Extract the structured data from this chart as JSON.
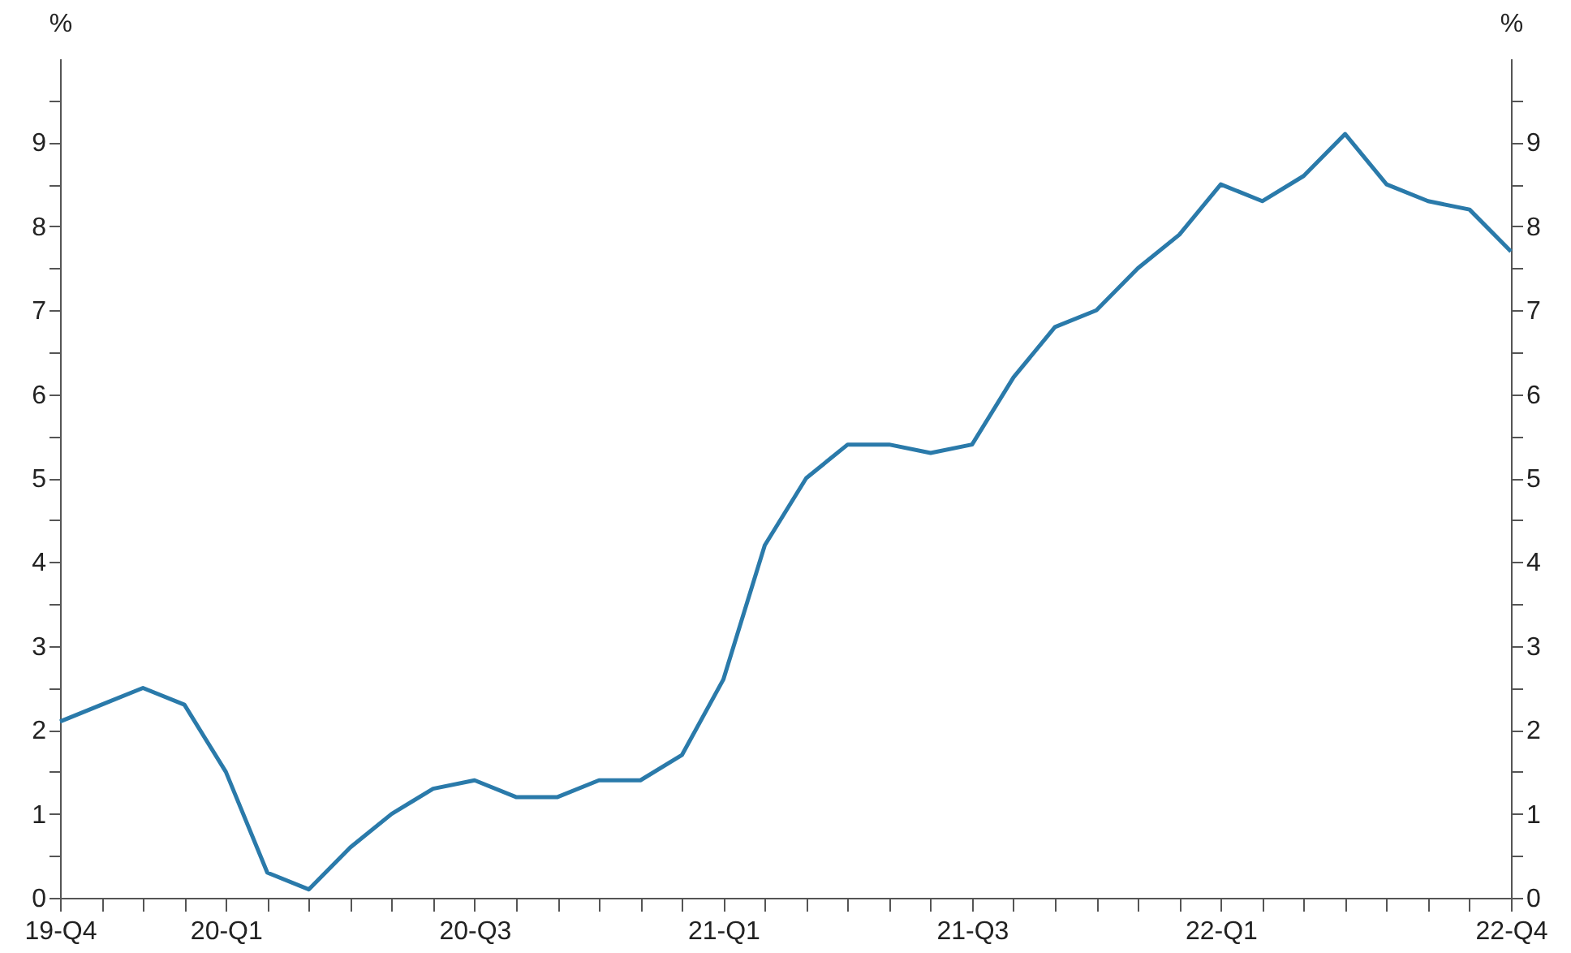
{
  "chart_data": {
    "type": "line",
    "ylabel": "%",
    "y2label": "%",
    "categories": [
      "19-Q4",
      null,
      null,
      null,
      "20-Q1",
      null,
      null,
      null,
      null,
      null,
      "20-Q3",
      null,
      null,
      null,
      null,
      null,
      "21-Q1",
      null,
      null,
      null,
      null,
      null,
      "21-Q3",
      null,
      null,
      null,
      null,
      null,
      "22-Q1",
      null,
      null,
      null,
      null,
      null,
      null,
      "22-Q4"
    ],
    "series": [
      {
        "color": "#2a7aaa",
        "values": [
          2.1,
          2.3,
          2.5,
          2.3,
          1.5,
          0.3,
          0.1,
          0.6,
          1.0,
          1.3,
          1.4,
          1.2,
          1.2,
          1.4,
          1.4,
          1.7,
          2.6,
          4.2,
          5.0,
          5.4,
          5.4,
          5.3,
          5.4,
          6.2,
          6.8,
          7.0,
          7.5,
          7.9,
          8.5,
          8.3,
          8.6,
          9.1,
          8.5,
          8.3,
          8.2,
          7.7
        ]
      }
    ],
    "ylim": [
      0,
      10
    ],
    "yticks": [
      0,
      {
        "value": 0.5,
        "label": null
      },
      1,
      {
        "value": 1.5,
        "label": null
      },
      2,
      {
        "value": 2.5,
        "label": null
      },
      3,
      {
        "value": 3.5,
        "label": null
      },
      4,
      {
        "value": 4.5,
        "label": null
      },
      5,
      {
        "value": 5.5,
        "label": null
      },
      6,
      {
        "value": 6.5,
        "label": null
      },
      7,
      {
        "value": 7.5,
        "label": null
      },
      8,
      {
        "value": 8.5,
        "label": null
      },
      9,
      {
        "value": 9.5,
        "label": null
      }
    ],
    "y2lim": [
      0,
      10
    ],
    "y2ticks": [
      0,
      {
        "value": 0.5,
        "label": null
      },
      1,
      {
        "value": 1.5,
        "label": null
      },
      2,
      {
        "value": 2.5,
        "label": null
      },
      3,
      {
        "value": 3.5,
        "label": null
      },
      4,
      {
        "value": 4.5,
        "label": null
      },
      5,
      {
        "value": 5.5,
        "label": null
      },
      6,
      {
        "value": 6.5,
        "label": null
      },
      7,
      {
        "value": 7.5,
        "label": null
      },
      8,
      {
        "value": 8.5,
        "label": null
      },
      9,
      {
        "value": 9.5,
        "label": null
      }
    ],
    "grid": false,
    "line_style": "solid"
  }
}
